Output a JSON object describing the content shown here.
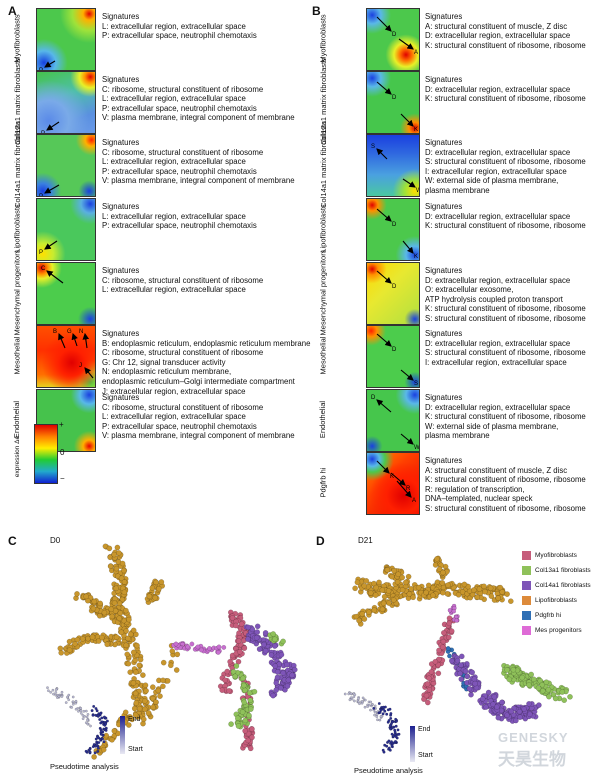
{
  "panels": {
    "A": {
      "label": "A",
      "rows": [
        {
          "label": "Myofibroblasts",
          "head": "Signatures",
          "lines": [
            "L: extracellular region, extracellular space",
            "P: extracellular space, neutrophil chemotaxis"
          ]
        },
        {
          "label": "Col13a1 matrix fibroblasts",
          "head": "Signatures",
          "lines": [
            "C: ribosome, structural constituent of ribosome",
            "L: extracellular region, extracellular space",
            "P: extracellular space, neutrophil chemotaxis",
            "V: plasma membrane, integral component of membrane"
          ]
        },
        {
          "label": "Col14a1 matrix fibroblasts",
          "head": "Signatures",
          "lines": [
            "C: ribosome, structural constituent of ribosome",
            "L: extracellular region, extracellular space",
            "P: extracellular space, neutrophil chemotaxis",
            "V: plasma membrane, integral component of membrane"
          ]
        },
        {
          "label": "Lipofibroblasts",
          "head": "Signatures",
          "lines": [
            "L: extracellular region, extracellular space",
            "P: extracellular space, neutrophil chemotaxis"
          ]
        },
        {
          "label": "Mesenchymal progenitors",
          "head": "Signatures",
          "lines": [
            "C: ribosome, structural constituent of ribosome",
            "L: extracellular region, extracellular space"
          ]
        },
        {
          "label": "Mesothelial",
          "head": "Signatures",
          "lines": [
            "B: endoplasmic reticulum, endoplasmic reticulum membrane",
            "C: ribosome, structural constituent of ribosome",
            "G: Chr 12, signal transducer activity",
            "N: endoplasmic reticulum membrane,",
            "endoplasmic reticulum–Golgi intermediate compartment",
            "J: extracellular region, extracellular space"
          ]
        },
        {
          "label": "Endothelial",
          "head": "Signatures",
          "lines": [
            "C: ribosome, structural constituent of ribosome",
            "L: extracellular region, extracellular space",
            "P: extracellular space, neutrophil chemotaxis",
            "V: plasma membrane, integral component of membrane"
          ]
        }
      ],
      "colorbar": {
        "title": "expression Δe",
        "top": "+",
        "mid": "0",
        "bottom": "−"
      }
    },
    "B": {
      "label": "B",
      "rows": [
        {
          "label": "Myofibroblasts",
          "head": "Signatures",
          "lines": [
            "A: structural constituent of muscle, Z disc",
            "D: extracellular region, extracellular space",
            "K: structural constituent of ribosome, ribosome"
          ]
        },
        {
          "label": "Col13a1 matrix fibroblasts",
          "head": "Signatures",
          "lines": [
            "D: extracellular region, extracellular space",
            "K: structural constituent of ribosome, ribosome"
          ]
        },
        {
          "label": "Col14a1 matrix fibroblasts",
          "head": "Signatures",
          "lines": [
            "D: extracellular region, extracellular space",
            "S: structural constituent of ribosome, ribosome",
            "I: extracellular region, extracellular space",
            "W: external side of plasma membrane,",
            "plasma membrane"
          ]
        },
        {
          "label": "Lipofibroblasts",
          "head": "Signatures",
          "lines": [
            "D: extracellular region, extracellular space",
            "K: structural constituent of ribosome, ribosome"
          ]
        },
        {
          "label": "Mesenchymal progenitors",
          "head": "Signatures",
          "lines": [
            "D: extracellular region, extracellular space",
            "O: extracellular exosome,",
            "ATP hydrolysis coupled proton transport",
            "K: structural constituent of ribosome, ribosome",
            "S: structural constituent of ribosome, ribosome"
          ]
        },
        {
          "label": "Mesothelial",
          "head": "Signatures",
          "lines": [
            "D: extracellular region, extracellular space",
            "S: structural constituent of ribosome, ribosome",
            "I: extracellular region, extracellular space"
          ]
        },
        {
          "label": "Endothelial",
          "head": "Signatures",
          "lines": [
            "D: extracellular region, extracellular space",
            "K: structural constituent of ribosome, ribosome",
            "W: external side of plasma membrane,",
            "plasma membrane"
          ]
        },
        {
          "label": "Pdgfrb hi",
          "head": "Signatures",
          "lines": [
            "A: structural constituent of muscle, Z disc",
            "K: structural constituent of ribosome, ribosome",
            "R: regulation of transcription,",
            "DNA–templated, nuclear speck",
            "S: structural constituent of ribosome, ribosome"
          ]
        }
      ]
    },
    "C": {
      "label": "C",
      "title": "D0",
      "pseudo": "Pseudotime analysis",
      "end": "End",
      "start": "Start"
    },
    "D": {
      "label": "D",
      "title": "D21",
      "pseudo": "Pseudotime analysis",
      "end": "End",
      "start": "Start"
    }
  },
  "legend": [
    {
      "label": "Myofibroblasts",
      "color": "#c65d7b"
    },
    {
      "label": "Col13a1 fibroblasts",
      "color": "#8fc15a"
    },
    {
      "label": "Col14a1 fibroblasts",
      "color": "#7e55b8"
    },
    {
      "label": "Lipofibroblasts",
      "color": "#dd8a3a"
    },
    {
      "label": "Pdgfrb hi",
      "color": "#2f6fb5"
    },
    {
      "label": "Mes progenitors",
      "color": "#de6bd6"
    }
  ],
  "colors": {
    "orange": "#c8962c",
    "pink": "#c65d7b",
    "purple": "#7e55b8",
    "green": "#8fc15a",
    "magenta": "#c86fd0",
    "blue": "#2f6fb5"
  },
  "watermark": {
    "line1": "GENESKY",
    "line2": "天昊生物"
  }
}
